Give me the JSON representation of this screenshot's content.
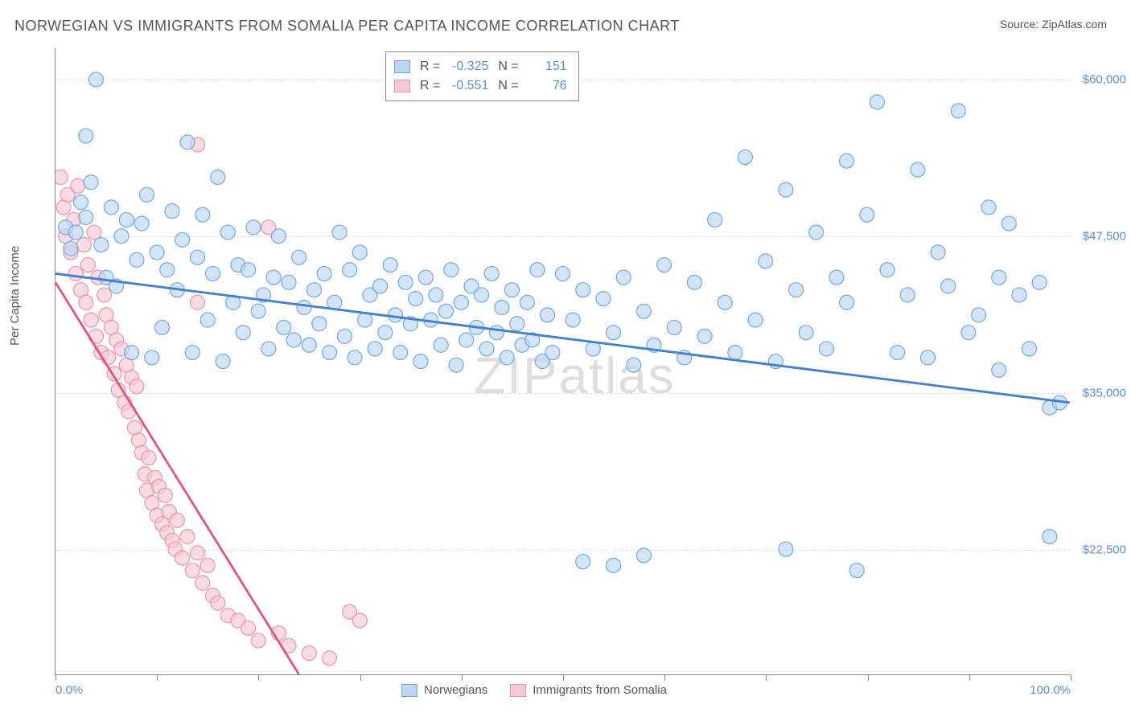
{
  "title": "NORWEGIAN VS IMMIGRANTS FROM SOMALIA PER CAPITA INCOME CORRELATION CHART",
  "source": "Source: ZipAtlas.com",
  "watermark": "ZIPatlas",
  "y_axis_label": "Per Capita Income",
  "chart": {
    "type": "scatter",
    "background_color": "#ffffff",
    "grid_color": "#dddddd",
    "axis_color": "#888888",
    "xlim": [
      0,
      100
    ],
    "ylim": [
      12500,
      62500
    ],
    "y_ticks": [
      22500,
      35000,
      47500,
      60000
    ],
    "y_tick_labels": [
      "$22,500",
      "$35,000",
      "$47,500",
      "$60,000"
    ],
    "x_ticks": [
      0,
      10,
      20,
      30,
      40,
      50,
      60,
      70,
      80,
      90,
      100
    ],
    "x_tick_labels_shown": {
      "0": "0.0%",
      "100": "100.0%"
    },
    "series": [
      {
        "name": "Norwegians",
        "color_fill": "#bcd6f2",
        "color_stroke": "#6fa8e0",
        "line_color": "#3e7fd1",
        "marker_radius": 9,
        "marker_opacity": 0.65,
        "R": "-0.325",
        "N": "151",
        "regression": {
          "x1": 0,
          "y1": 44500,
          "x2": 100,
          "y2": 34200
        },
        "points": [
          [
            1,
            48200
          ],
          [
            1.5,
            46500
          ],
          [
            2,
            47800
          ],
          [
            2.5,
            50200
          ],
          [
            3,
            49000
          ],
          [
            3.5,
            51800
          ],
          [
            3,
            55500
          ],
          [
            4,
            60000
          ],
          [
            4.5,
            46800
          ],
          [
            5,
            44200
          ],
          [
            5.5,
            49800
          ],
          [
            6,
            43500
          ],
          [
            6.5,
            47500
          ],
          [
            7,
            48800
          ],
          [
            7.5,
            38200
          ],
          [
            8,
            45600
          ],
          [
            8.5,
            48500
          ],
          [
            9,
            50800
          ],
          [
            9.5,
            37800
          ],
          [
            10,
            46200
          ],
          [
            10.5,
            40200
          ],
          [
            11,
            44800
          ],
          [
            11.5,
            49500
          ],
          [
            12,
            43200
          ],
          [
            12.5,
            47200
          ],
          [
            13,
            55000
          ],
          [
            13.5,
            38200
          ],
          [
            14,
            45800
          ],
          [
            14.5,
            49200
          ],
          [
            15,
            40800
          ],
          [
            15.5,
            44500
          ],
          [
            16,
            52200
          ],
          [
            16.5,
            37500
          ],
          [
            17,
            47800
          ],
          [
            17.5,
            42200
          ],
          [
            18,
            45200
          ],
          [
            18.5,
            39800
          ],
          [
            19,
            44800
          ],
          [
            19.5,
            48200
          ],
          [
            20,
            41500
          ],
          [
            20.5,
            42800
          ],
          [
            21,
            38500
          ],
          [
            21.5,
            44200
          ],
          [
            22,
            47500
          ],
          [
            22.5,
            40200
          ],
          [
            23,
            43800
          ],
          [
            23.5,
            39200
          ],
          [
            24,
            45800
          ],
          [
            24.5,
            41800
          ],
          [
            25,
            38800
          ],
          [
            25.5,
            43200
          ],
          [
            26,
            40500
          ],
          [
            26.5,
            44500
          ],
          [
            27,
            38200
          ],
          [
            27.5,
            42200
          ],
          [
            28,
            47800
          ],
          [
            28.5,
            39500
          ],
          [
            29,
            44800
          ],
          [
            29.5,
            37800
          ],
          [
            30,
            46200
          ],
          [
            30.5,
            40800
          ],
          [
            31,
            42800
          ],
          [
            31.5,
            38500
          ],
          [
            32,
            43500
          ],
          [
            32.5,
            39800
          ],
          [
            33,
            45200
          ],
          [
            33.5,
            41200
          ],
          [
            34,
            38200
          ],
          [
            34.5,
            43800
          ],
          [
            35,
            40500
          ],
          [
            35.5,
            42500
          ],
          [
            36,
            37500
          ],
          [
            36.5,
            44200
          ],
          [
            37,
            40800
          ],
          [
            37.5,
            42800
          ],
          [
            38,
            38800
          ],
          [
            38.5,
            41500
          ],
          [
            39,
            44800
          ],
          [
            39.5,
            37200
          ],
          [
            40,
            42200
          ],
          [
            40.5,
            39200
          ],
          [
            41,
            43500
          ],
          [
            41.5,
            40200
          ],
          [
            42,
            42800
          ],
          [
            42.5,
            38500
          ],
          [
            43,
            44500
          ],
          [
            43.5,
            39800
          ],
          [
            44,
            41800
          ],
          [
            44.5,
            37800
          ],
          [
            45,
            43200
          ],
          [
            45.5,
            40500
          ],
          [
            46,
            38800
          ],
          [
            46.5,
            42200
          ],
          [
            47,
            39200
          ],
          [
            47.5,
            44800
          ],
          [
            48,
            37500
          ],
          [
            48.5,
            41200
          ],
          [
            49,
            38200
          ],
          [
            50,
            44500
          ],
          [
            51,
            40800
          ],
          [
            52,
            43200
          ],
          [
            52,
            21500
          ],
          [
            53,
            38500
          ],
          [
            54,
            42500
          ],
          [
            55,
            39800
          ],
          [
            55,
            21200
          ],
          [
            56,
            44200
          ],
          [
            57,
            37200
          ],
          [
            58,
            41500
          ],
          [
            58,
            22000
          ],
          [
            59,
            38800
          ],
          [
            60,
            45200
          ],
          [
            61,
            40200
          ],
          [
            62,
            37800
          ],
          [
            63,
            43800
          ],
          [
            64,
            39500
          ],
          [
            65,
            48800
          ],
          [
            66,
            42200
          ],
          [
            67,
            38200
          ],
          [
            68,
            53800
          ],
          [
            69,
            40800
          ],
          [
            70,
            45500
          ],
          [
            71,
            37500
          ],
          [
            72,
            51200
          ],
          [
            72,
            22500
          ],
          [
            73,
            43200
          ],
          [
            74,
            39800
          ],
          [
            75,
            47800
          ],
          [
            76,
            38500
          ],
          [
            77,
            44200
          ],
          [
            78,
            53500
          ],
          [
            78,
            42200
          ],
          [
            79,
            20800
          ],
          [
            80,
            49200
          ],
          [
            81,
            58200
          ],
          [
            82,
            44800
          ],
          [
            83,
            38200
          ],
          [
            84,
            42800
          ],
          [
            85,
            52800
          ],
          [
            86,
            37800
          ],
          [
            87,
            46200
          ],
          [
            88,
            43500
          ],
          [
            89,
            57500
          ],
          [
            90,
            39800
          ],
          [
            91,
            41200
          ],
          [
            92,
            49800
          ],
          [
            93,
            36800
          ],
          [
            93,
            44200
          ],
          [
            94,
            48500
          ],
          [
            95,
            42800
          ],
          [
            96,
            38500
          ],
          [
            97,
            43800
          ],
          [
            98,
            33800
          ],
          [
            98,
            23500
          ],
          [
            99,
            34200
          ]
        ]
      },
      {
        "name": "Immigrants from Somalia",
        "color_fill": "#f6c9d4",
        "color_stroke": "#ec92ab",
        "line_color": "#e0547e",
        "marker_radius": 9,
        "marker_opacity": 0.65,
        "R": "-0.551",
        "N": "76",
        "regression": {
          "x1": 0,
          "y1": 43800,
          "x2": 24,
          "y2": 12500
        },
        "points": [
          [
            0.5,
            52200
          ],
          [
            0.8,
            49800
          ],
          [
            1,
            47500
          ],
          [
            1.2,
            50800
          ],
          [
            1.5,
            46200
          ],
          [
            1.8,
            48800
          ],
          [
            2,
            44500
          ],
          [
            2.2,
            51500
          ],
          [
            2.5,
            43200
          ],
          [
            2.8,
            46800
          ],
          [
            3,
            42200
          ],
          [
            3.2,
            45200
          ],
          [
            3.5,
            40800
          ],
          [
            3.8,
            47800
          ],
          [
            4,
            39500
          ],
          [
            4.2,
            44200
          ],
          [
            4.5,
            38200
          ],
          [
            4.8,
            42800
          ],
          [
            5,
            41200
          ],
          [
            5.2,
            37800
          ],
          [
            5.5,
            40200
          ],
          [
            5.8,
            36500
          ],
          [
            6,
            39200
          ],
          [
            6.2,
            35200
          ],
          [
            6.5,
            38500
          ],
          [
            6.8,
            34200
          ],
          [
            7,
            37200
          ],
          [
            7.2,
            33500
          ],
          [
            7.5,
            36200
          ],
          [
            7.8,
            32200
          ],
          [
            8,
            35500
          ],
          [
            8.2,
            31200
          ],
          [
            8.5,
            30200
          ],
          [
            8.8,
            28500
          ],
          [
            9,
            27200
          ],
          [
            9.2,
            29800
          ],
          [
            9.5,
            26200
          ],
          [
            9.8,
            28200
          ],
          [
            10,
            25200
          ],
          [
            10.2,
            27500
          ],
          [
            10.5,
            24500
          ],
          [
            10.8,
            26800
          ],
          [
            11,
            23800
          ],
          [
            11.2,
            25500
          ],
          [
            11.5,
            23200
          ],
          [
            11.8,
            22500
          ],
          [
            12,
            24800
          ],
          [
            12.5,
            21800
          ],
          [
            13,
            23500
          ],
          [
            13.5,
            20800
          ],
          [
            14,
            22200
          ],
          [
            14,
            54800
          ],
          [
            14.5,
            19800
          ],
          [
            15,
            21200
          ],
          [
            14,
            42200
          ],
          [
            15.5,
            18800
          ],
          [
            16,
            18200
          ],
          [
            17,
            17200
          ],
          [
            18,
            16800
          ],
          [
            19,
            16200
          ],
          [
            20,
            15200
          ],
          [
            21,
            48200
          ],
          [
            22,
            15800
          ],
          [
            23,
            14800
          ],
          [
            25,
            14200
          ],
          [
            27,
            13800
          ],
          [
            29,
            17500
          ],
          [
            30,
            16800
          ]
        ]
      }
    ]
  },
  "legend_top": {
    "R_label": "R =",
    "N_label": "N ="
  },
  "legend_bottom": [
    {
      "label": "Norwegians",
      "fill": "#bcd6f2",
      "stroke": "#6fa8e0"
    },
    {
      "label": "Immigrants from Somalia",
      "fill": "#f6c9d4",
      "stroke": "#ec92ab"
    }
  ]
}
